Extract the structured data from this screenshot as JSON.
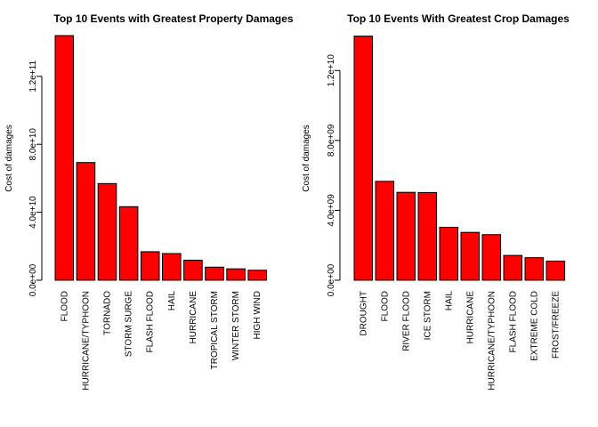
{
  "chart_data": [
    {
      "type": "bar",
      "title": "Top 10 Events with Greatest Property Damages",
      "ylabel": "Cost of damages",
      "xlabel": "",
      "color": "#ff0000",
      "ylim": [
        0,
        144000000000
      ],
      "yticks": [
        0,
        40000000000,
        80000000000,
        120000000000
      ],
      "ytick_labels": [
        "0.0e+00",
        "4.0e+10",
        "8.0e+10",
        "1.2e+11"
      ],
      "categories": [
        "FLOOD",
        "HURRICANE/TYPHOON",
        "TORNADO",
        "STORM SURGE",
        "FLASH FLOOD",
        "HAIL",
        "HURRICANE",
        "TROPICAL STORM",
        "WINTER STORM",
        "HIGH WIND"
      ],
      "values": [
        144700000000,
        69300000000,
        56900000000,
        43300000000,
        16800000000,
        15700000000,
        11800000000,
        7700000000,
        6700000000,
        5900000000
      ]
    },
    {
      "type": "bar",
      "title": "Top 10 Events With Greatest Crop Damages",
      "ylabel": "Cost of damages",
      "xlabel": "",
      "color": "#ff0000",
      "ylim": [
        0,
        14000000000
      ],
      "yticks": [
        0,
        4000000000,
        8000000000,
        12000000000
      ],
      "ytick_labels": [
        "0.0e+00",
        "4.0e+09",
        "8.0e+09",
        "1.2e+10"
      ],
      "categories": [
        "DROUGHT",
        "FLOOD",
        "RIVER FLOOD",
        "ICE STORM",
        "HAIL",
        "HURRICANE",
        "HURRICANE/TYPHOON",
        "FLASH FLOOD",
        "EXTREME COLD",
        "FROST/FREEZE"
      ],
      "values": [
        13970000000,
        5660000000,
        5030000000,
        5020000000,
        3030000000,
        2740000000,
        2610000000,
        1420000000,
        1290000000,
        1090000000
      ]
    }
  ]
}
